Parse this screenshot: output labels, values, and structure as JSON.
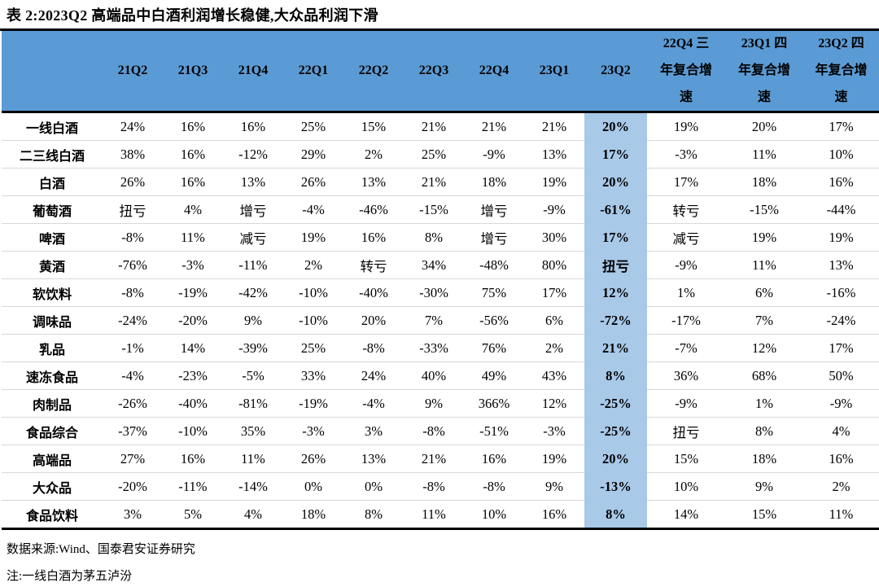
{
  "title": "表 2:2023Q2 高端品中白酒利润增长稳健,大众品利润下滑",
  "colors": {
    "header_bg": "#5B9BD5",
    "highlight_bg": "#A9C9E9",
    "row_divider": "#d8d8d8",
    "border": "#000000"
  },
  "chart_data": {
    "type": "table",
    "title": "2023Q2 高端品中白酒利润增长稳健,大众品利润下滑",
    "caption_prefix": "表 2:",
    "columns": [
      "",
      "21Q2",
      "21Q3",
      "21Q4",
      "22Q1",
      "22Q2",
      "22Q3",
      "22Q4",
      "23Q1",
      "23Q2",
      "22Q4 三\n年复合增\n速",
      "23Q1 四\n年复合增\n速",
      "23Q2 四\n年复合增\n速"
    ],
    "highlighted_column": "23Q2",
    "rows": [
      {
        "label": "一线白酒",
        "values": [
          "24%",
          "16%",
          "16%",
          "25%",
          "15%",
          "21%",
          "21%",
          "21%",
          "20%",
          "19%",
          "20%",
          "17%"
        ]
      },
      {
        "label": "二三线白酒",
        "values": [
          "38%",
          "16%",
          "-12%",
          "29%",
          "2%",
          "25%",
          "-9%",
          "13%",
          "17%",
          "-3%",
          "11%",
          "10%"
        ]
      },
      {
        "label": "白酒",
        "values": [
          "26%",
          "16%",
          "13%",
          "26%",
          "13%",
          "21%",
          "18%",
          "19%",
          "20%",
          "17%",
          "18%",
          "16%"
        ]
      },
      {
        "label": "葡萄酒",
        "values": [
          "扭亏",
          "4%",
          "增亏",
          "-4%",
          "-46%",
          "-15%",
          "增亏",
          "-9%",
          "-61%",
          "转亏",
          "-15%",
          "-44%"
        ]
      },
      {
        "label": "啤酒",
        "values": [
          "-8%",
          "11%",
          "减亏",
          "19%",
          "16%",
          "8%",
          "增亏",
          "30%",
          "17%",
          "减亏",
          "19%",
          "19%"
        ]
      },
      {
        "label": "黄酒",
        "values": [
          "-76%",
          "-3%",
          "-11%",
          "2%",
          "转亏",
          "34%",
          "-48%",
          "80%",
          "扭亏",
          "-9%",
          "11%",
          "13%"
        ]
      },
      {
        "label": "软饮料",
        "values": [
          "-8%",
          "-19%",
          "-42%",
          "-10%",
          "-40%",
          "-30%",
          "75%",
          "17%",
          "12%",
          "1%",
          "6%",
          "-16%"
        ]
      },
      {
        "label": "调味品",
        "values": [
          "-24%",
          "-20%",
          "9%",
          "-10%",
          "20%",
          "7%",
          "-56%",
          "6%",
          "-72%",
          "-17%",
          "7%",
          "-24%"
        ]
      },
      {
        "label": "乳品",
        "values": [
          "-1%",
          "14%",
          "-39%",
          "25%",
          "-8%",
          "-33%",
          "76%",
          "2%",
          "21%",
          "-7%",
          "12%",
          "17%"
        ]
      },
      {
        "label": "速冻食品",
        "values": [
          "-4%",
          "-23%",
          "-5%",
          "33%",
          "24%",
          "40%",
          "49%",
          "43%",
          "8%",
          "36%",
          "68%",
          "50%"
        ]
      },
      {
        "label": "肉制品",
        "values": [
          "-26%",
          "-40%",
          "-81%",
          "-19%",
          "-4%",
          "9%",
          "366%",
          "12%",
          "-25%",
          "-9%",
          "1%",
          "-9%"
        ]
      },
      {
        "label": "食品综合",
        "values": [
          "-37%",
          "-10%",
          "35%",
          "-3%",
          "3%",
          "-8%",
          "-51%",
          "-3%",
          "-25%",
          "扭亏",
          "8%",
          "4%"
        ]
      },
      {
        "label": "高端品",
        "values": [
          "27%",
          "16%",
          "11%",
          "26%",
          "13%",
          "21%",
          "16%",
          "19%",
          "20%",
          "15%",
          "18%",
          "16%"
        ]
      },
      {
        "label": "大众品",
        "values": [
          "-20%",
          "-11%",
          "-14%",
          "0%",
          "0%",
          "-8%",
          "-8%",
          "9%",
          "-13%",
          "10%",
          "9%",
          "2%"
        ]
      },
      {
        "label": "食品饮料",
        "values": [
          "3%",
          "5%",
          "4%",
          "18%",
          "8%",
          "11%",
          "10%",
          "16%",
          "8%",
          "14%",
          "15%",
          "11%"
        ]
      }
    ]
  },
  "footer": {
    "source": "数据来源:Wind、国泰君安证券研究",
    "note": "注:一线白酒为茅五泸汾"
  }
}
